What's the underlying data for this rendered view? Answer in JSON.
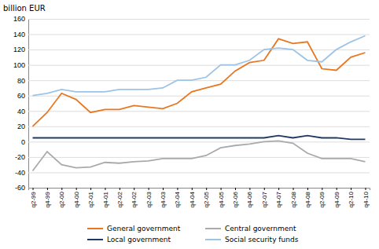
{
  "chart_data": {
    "type": "line",
    "y_label": "billion EUR",
    "categories": [
      "q2-99",
      "q4-99",
      "q2-00",
      "q4-00",
      "q2-01",
      "q4-01",
      "q2-02",
      "q4-02",
      "q2-03",
      "q4-03",
      "q2-04",
      "q4-04",
      "q2-05",
      "q4-05",
      "q2-06",
      "q4-06",
      "q2-07",
      "q4-07",
      "q2-08",
      "q4-08",
      "q2-09",
      "q4-09",
      "q2-10",
      "q4-10"
    ],
    "series": [
      {
        "name": "General government",
        "color": "#E87722",
        "values": [
          20,
          38,
          63,
          55,
          38,
          42,
          42,
          47,
          45,
          43,
          50,
          65,
          70,
          75,
          92,
          103,
          106,
          134,
          128,
          130,
          95,
          93,
          110,
          116
        ]
      },
      {
        "name": "Central government",
        "color": "#AAAAAA",
        "values": [
          -38,
          -13,
          -30,
          -34,
          -33,
          -27,
          -28,
          -26,
          -25,
          -22,
          -22,
          -22,
          -18,
          -8,
          -5,
          -3,
          0,
          1,
          -2,
          -15,
          -22,
          -22,
          -22,
          -26
        ]
      },
      {
        "name": "Local government",
        "color": "#1F3864",
        "values": [
          5,
          5,
          5,
          5,
          5,
          5,
          5,
          5,
          5,
          5,
          5,
          5,
          5,
          5,
          5,
          5,
          5,
          8,
          5,
          8,
          5,
          5,
          3,
          3
        ]
      },
      {
        "name": "Social security funds",
        "color": "#9DC3E6",
        "values": [
          60,
          63,
          68,
          65,
          65,
          65,
          68,
          68,
          68,
          70,
          80,
          80,
          84,
          100,
          100,
          106,
          120,
          122,
          120,
          106,
          104,
          120,
          130,
          138
        ]
      }
    ],
    "ylim": [
      -60,
      160
    ],
    "yticks": [
      -60,
      -40,
      -20,
      0,
      20,
      40,
      60,
      80,
      100,
      120,
      140,
      160
    ],
    "grid": true,
    "legend": "bottom"
  }
}
